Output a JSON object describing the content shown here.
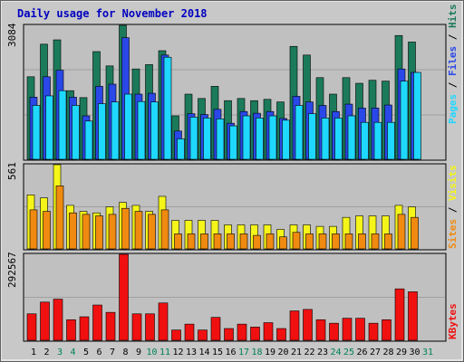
{
  "chart_data": [
    {
      "type": "bar",
      "title": "Daily usage for November 2018",
      "categories": [
        "1",
        "2",
        "3",
        "4",
        "5",
        "6",
        "7",
        "8",
        "9",
        "10",
        "11",
        "12",
        "13",
        "14",
        "15",
        "16",
        "17",
        "18",
        "19",
        "20",
        "21",
        "22",
        "23",
        "24",
        "25",
        "26",
        "27",
        "28",
        "29",
        "30",
        "31"
      ],
      "weekend_days": [
        "3",
        "4",
        "10",
        "11",
        "17",
        "18",
        "24",
        "25",
        "31"
      ],
      "ymax_label": "3084",
      "legend": [
        "Pages",
        "Files",
        "Hits"
      ],
      "series": [
        {
          "name": "Hits",
          "color": "#1b7a5a",
          "values": [
            1900,
            2650,
            2750,
            1580,
            1420,
            2480,
            2150,
            3084,
            2080,
            2180,
            2500,
            1000,
            1500,
            1400,
            1680,
            1350,
            1400,
            1350,
            1380,
            1320,
            2600,
            2400,
            1880,
            1500,
            1880,
            1750,
            1820,
            1800,
            2850,
            2700,
            0
          ]
        },
        {
          "name": "Files",
          "color": "#2a47e8",
          "values": [
            1430,
            1900,
            2050,
            1430,
            1000,
            1680,
            1730,
            2800,
            1500,
            1520,
            2400,
            650,
            1050,
            1030,
            1150,
            830,
            1100,
            1060,
            1100,
            940,
            1450,
            1320,
            1240,
            1100,
            1270,
            1180,
            1180,
            1250,
            2080,
            2000,
            0
          ]
        },
        {
          "name": "Pages",
          "color": "#1fd8ff",
          "values": [
            1240,
            1460,
            1580,
            1240,
            880,
            1280,
            1320,
            1500,
            1330,
            1320,
            2350,
            470,
            970,
            950,
            930,
            770,
            1000,
            950,
            1000,
            900,
            1240,
            1050,
            950,
            950,
            1000,
            850,
            850,
            850,
            1800,
            2000,
            0
          ]
        }
      ]
    },
    {
      "type": "bar",
      "categories": [
        "1",
        "2",
        "3",
        "4",
        "5",
        "6",
        "7",
        "8",
        "9",
        "10",
        "11",
        "12",
        "13",
        "14",
        "15",
        "16",
        "17",
        "18",
        "19",
        "20",
        "21",
        "22",
        "23",
        "24",
        "25",
        "26",
        "27",
        "28",
        "29",
        "30",
        "31"
      ],
      "ymax_label": "561",
      "legend": [
        "Sites",
        "Visits"
      ],
      "series": [
        {
          "name": "Visits",
          "color": "#f5f51a",
          "values": [
            360,
            340,
            561,
            290,
            250,
            240,
            280,
            310,
            290,
            250,
            350,
            190,
            190,
            190,
            190,
            160,
            160,
            160,
            160,
            130,
            160,
            160,
            150,
            150,
            210,
            220,
            220,
            220,
            290,
            280,
            0
          ]
        },
        {
          "name": "Sites",
          "color": "#f08a10",
          "values": [
            260,
            250,
            420,
            240,
            230,
            220,
            230,
            270,
            250,
            230,
            260,
            100,
            100,
            100,
            100,
            100,
            100,
            90,
            100,
            80,
            110,
            100,
            100,
            100,
            100,
            100,
            100,
            100,
            230,
            210,
            0
          ]
        }
      ]
    },
    {
      "type": "bar",
      "categories": [
        "1",
        "2",
        "3",
        "4",
        "5",
        "6",
        "7",
        "8",
        "9",
        "10",
        "11",
        "12",
        "13",
        "14",
        "15",
        "16",
        "17",
        "18",
        "19",
        "20",
        "21",
        "22",
        "23",
        "24",
        "25",
        "26",
        "27",
        "28",
        "29",
        "30",
        "31"
      ],
      "ymax_label": "292567",
      "legend": [
        "KBytes"
      ],
      "series": [
        {
          "name": "KBytes",
          "color": "#f01010",
          "values": [
            90000,
            130000,
            140000,
            70000,
            80000,
            120000,
            95000,
            292567,
            90000,
            90000,
            127000,
            35000,
            55000,
            35000,
            78000,
            40000,
            55000,
            45000,
            60000,
            40000,
            100000,
            105000,
            70000,
            58000,
            75000,
            75000,
            58000,
            70000,
            175000,
            165000,
            0
          ]
        }
      ]
    }
  ]
}
